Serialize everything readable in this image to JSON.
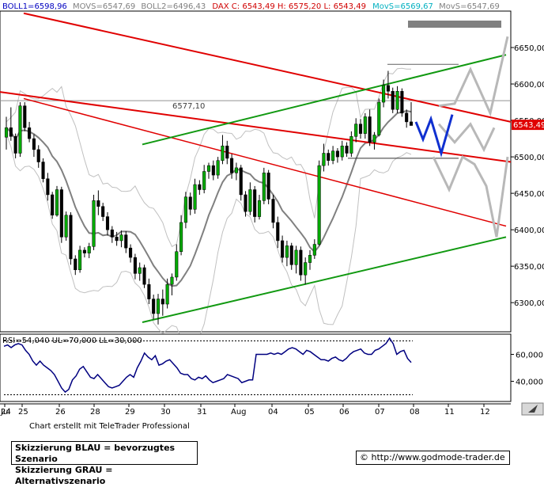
{
  "header": {
    "boll1_label": "BOLL1=6598,96",
    "movs_label": "MOVS=6547,69",
    "boll2_label": "BOLL2=6496,43",
    "dax_label": "DAX C: 6543,49 H: 6575,20 L: 6543,49",
    "movs2_label": "MovS=6569,67",
    "movs3_label": "MovS=6547,69"
  },
  "rsi_panel": {
    "label": "RSI=54,040 UL=70,000 LL=30,000"
  },
  "footer": {
    "chart_note": "Chart erstellt mit TeleTrader Professional",
    "legend_blue": "Skizzierung BLAU = bevorzugtes Szenario",
    "legend_grey": "Skizzierung GRAU = Alternativszenario",
    "credit": "© http://www.godmode-trader.de"
  },
  "colors": {
    "bull": "#00aa00",
    "bear": "#000000",
    "red_trend": "#e00000",
    "green_trend": "#119911",
    "bollinger": "#c0c0c0",
    "moving_average": "#808080",
    "rsi": "#000080",
    "scenario_blue": "#1030d0",
    "scenario_grey": "#b8b8b8",
    "price_tag": "#e00000",
    "header_blue": "#0000c0",
    "header_red": "#d00000",
    "header_cyan": "#00b0c0"
  },
  "chart_data": [
    {
      "type": "candlestick",
      "title": "DAX",
      "ylim": [
        6260,
        6700
      ],
      "y_ticks": [
        6300,
        6350,
        6400,
        6450,
        6500,
        6550,
        6600,
        6650
      ],
      "y_tick_labels": [
        "6300,00",
        "6350,00",
        "6400,00",
        "6450,00",
        "6500,00",
        "6550,00",
        "6600,00",
        "6650,00"
      ],
      "x_tick_labels": [
        "Jul",
        "24",
        "25",
        "26",
        "28",
        "29",
        "30",
        "31",
        "Aug",
        "04",
        "05",
        "06",
        "07",
        "08",
        "11",
        "12"
      ],
      "last_price": 6543.49,
      "last_price_label": "6543,49",
      "annotation": {
        "text": "6577,10",
        "value": 6577.1
      },
      "ohlc": [
        [
          6527,
          6555,
          6510,
          6540
        ],
        [
          6540,
          6568,
          6522,
          6528
        ],
        [
          6528,
          6532,
          6498,
          6505
        ],
        [
          6505,
          6575,
          6500,
          6570
        ],
        [
          6570,
          6575,
          6535,
          6540
        ],
        [
          6540,
          6548,
          6520,
          6525
        ],
        [
          6525,
          6531,
          6500,
          6510
        ],
        [
          6510,
          6516,
          6485,
          6493
        ],
        [
          6493,
          6498,
          6465,
          6470
        ],
        [
          6470,
          6478,
          6440,
          6448
        ],
        [
          6448,
          6452,
          6415,
          6420
        ],
        [
          6420,
          6460,
          6418,
          6455
        ],
        [
          6455,
          6459,
          6382,
          6390
        ],
        [
          6390,
          6425,
          6385,
          6420
        ],
        [
          6420,
          6424,
          6352,
          6360
        ],
        [
          6360,
          6365,
          6338,
          6345
        ],
        [
          6345,
          6378,
          6341,
          6372
        ],
        [
          6372,
          6376,
          6362,
          6368
        ],
        [
          6368,
          6382,
          6361,
          6377
        ],
        [
          6377,
          6448,
          6372,
          6440
        ],
        [
          6440,
          6454,
          6420,
          6432
        ],
        [
          6432,
          6437,
          6412,
          6418
        ],
        [
          6418,
          6424,
          6392,
          6400
        ],
        [
          6400,
          6405,
          6382,
          6390
        ],
        [
          6390,
          6397,
          6378,
          6385
        ],
        [
          6385,
          6399,
          6376,
          6393
        ],
        [
          6393,
          6398,
          6368,
          6375
        ],
        [
          6375,
          6380,
          6355,
          6362
        ],
        [
          6362,
          6367,
          6332,
          6340
        ],
        [
          6340,
          6355,
          6330,
          6348
        ],
        [
          6348,
          6352,
          6320,
          6325
        ],
        [
          6325,
          6333,
          6298,
          6305
        ],
        [
          6305,
          6311,
          6277,
          6285
        ],
        [
          6285,
          6312,
          6270,
          6305
        ],
        [
          6305,
          6318,
          6282,
          6298
        ],
        [
          6298,
          6333,
          6292,
          6325
        ],
        [
          6325,
          6340,
          6310,
          6335
        ],
        [
          6335,
          6380,
          6330,
          6370
        ],
        [
          6370,
          6420,
          6365,
          6410
        ],
        [
          6410,
          6452,
          6402,
          6445
        ],
        [
          6445,
          6451,
          6420,
          6428
        ],
        [
          6428,
          6470,
          6422,
          6462
        ],
        [
          6462,
          6468,
          6448,
          6455
        ],
        [
          6455,
          6489,
          6450,
          6480
        ],
        [
          6480,
          6492,
          6470,
          6488
        ],
        [
          6488,
          6495,
          6468,
          6475
        ],
        [
          6475,
          6500,
          6470,
          6495
        ],
        [
          6495,
          6530,
          6490,
          6515
        ],
        [
          6515,
          6522,
          6490,
          6498
        ],
        [
          6498,
          6504,
          6470,
          6478
        ],
        [
          6478,
          6492,
          6468,
          6485
        ],
        [
          6485,
          6489,
          6440,
          6448
        ],
        [
          6448,
          6453,
          6418,
          6425
        ],
        [
          6425,
          6465,
          6420,
          6455
        ],
        [
          6455,
          6460,
          6410,
          6418
        ],
        [
          6418,
          6448,
          6414,
          6440
        ],
        [
          6440,
          6485,
          6435,
          6478
        ],
        [
          6478,
          6482,
          6435,
          6442
        ],
        [
          6442,
          6448,
          6402,
          6410
        ],
        [
          6410,
          6418,
          6375,
          6385
        ],
        [
          6385,
          6392,
          6355,
          6362
        ],
        [
          6362,
          6385,
          6350,
          6378
        ],
        [
          6378,
          6382,
          6345,
          6352
        ],
        [
          6352,
          6378,
          6340,
          6372
        ],
        [
          6372,
          6377,
          6330,
          6338
        ],
        [
          6338,
          6362,
          6325,
          6355
        ],
        [
          6355,
          6372,
          6345,
          6365
        ],
        [
          6365,
          6387,
          6360,
          6380
        ],
        [
          6380,
          6495,
          6378,
          6488
        ],
        [
          6488,
          6518,
          6480,
          6505
        ],
        [
          6505,
          6510,
          6488,
          6495
        ],
        [
          6495,
          6515,
          6490,
          6508
        ],
        [
          6508,
          6512,
          6492,
          6500
        ],
        [
          6500,
          6522,
          6495,
          6515
        ],
        [
          6515,
          6520,
          6500,
          6505
        ],
        [
          6505,
          6535,
          6500,
          6528
        ],
        [
          6528,
          6553,
          6520,
          6545
        ],
        [
          6545,
          6552,
          6525,
          6532
        ],
        [
          6532,
          6560,
          6525,
          6555
        ],
        [
          6555,
          6565,
          6515,
          6520
        ],
        [
          6520,
          6534,
          6510,
          6530
        ],
        [
          6530,
          6580,
          6528,
          6575
        ],
        [
          6575,
          6606,
          6568,
          6598
        ],
        [
          6598,
          6618,
          6580,
          6590
        ],
        [
          6590,
          6595,
          6560,
          6565
        ],
        [
          6565,
          6597,
          6560,
          6590
        ],
        [
          6590,
          6594,
          6555,
          6560
        ],
        [
          6560,
          6565,
          6540,
          6548
        ],
        [
          6548,
          6575,
          6543,
          6543
        ]
      ]
    },
    {
      "type": "line",
      "title": "RSI",
      "ylim": [
        25,
        75
      ],
      "y_ticks": [
        40,
        60
      ],
      "y_tick_labels": [
        "40,000",
        "60,000"
      ],
      "upper_level": 70,
      "lower_level": 30,
      "last_value": 54.04,
      "values": [
        66,
        67,
        65,
        67,
        68,
        67,
        63,
        60,
        55,
        52,
        55,
        52,
        50,
        48,
        45,
        40,
        35,
        32,
        34,
        41,
        44,
        49,
        51,
        47,
        43,
        42,
        45,
        42,
        39,
        36,
        35,
        36,
        37,
        40,
        43,
        45,
        43,
        50,
        55,
        61,
        58,
        56,
        59,
        52,
        53,
        55,
        56,
        53,
        50,
        46,
        45,
        45,
        42,
        41,
        43,
        42,
        44,
        41,
        39,
        40,
        41,
        42,
        45,
        44,
        43,
        42,
        39,
        40,
        41,
        41,
        60,
        60,
        60,
        60,
        61,
        60,
        61,
        60,
        62,
        64,
        65,
        64,
        62,
        60,
        63,
        62,
        60,
        58,
        56,
        56,
        55,
        57,
        58,
        56,
        55,
        57,
        60,
        62,
        63,
        64,
        61,
        60,
        60,
        63,
        64,
        66,
        68,
        72,
        68,
        60,
        62,
        63,
        57,
        54
      ]
    }
  ]
}
